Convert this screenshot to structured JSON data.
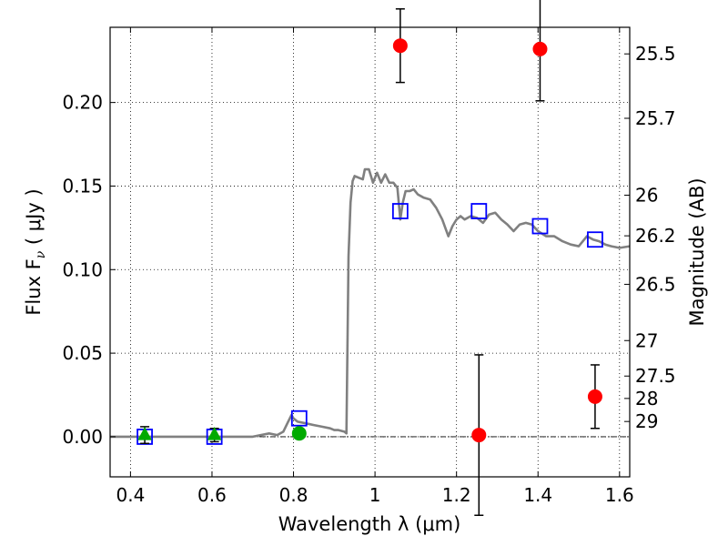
{
  "chart_data": {
    "type": "scatter",
    "xlabel": "Wavelength  λ (μm)",
    "ylabel": "Flux  F",
    "ylabel_sub": "ν",
    "ylabel_unit": " ( μJy )",
    "y2label": "Magnitude (AB)",
    "xlim": [
      0.35,
      1.625
    ],
    "ylim": [
      -0.024,
      0.245
    ],
    "grid": true,
    "xticks": [
      {
        "value": 0.4,
        "label": "0.4"
      },
      {
        "value": 0.6,
        "label": "0.6"
      },
      {
        "value": 0.8,
        "label": "0.8"
      },
      {
        "value": 1.0,
        "label": "1"
      },
      {
        "value": 1.2,
        "label": "1.2"
      },
      {
        "value": 1.4,
        "label": "1.4"
      },
      {
        "value": 1.6,
        "label": "1.6"
      }
    ],
    "yticks": [
      {
        "value": 0.0,
        "label": "0.00"
      },
      {
        "value": 0.05,
        "label": "0.05"
      },
      {
        "value": 0.1,
        "label": "0.10"
      },
      {
        "value": 0.15,
        "label": "0.15"
      },
      {
        "value": 0.2,
        "label": "0.20"
      }
    ],
    "mag_ticks": [
      {
        "mag": 25.5,
        "label": "25.5"
      },
      {
        "mag": 25.7,
        "label": "25.7"
      },
      {
        "mag": 26.0,
        "label": "26"
      },
      {
        "mag": 26.2,
        "label": "26.2"
      },
      {
        "mag": 26.5,
        "label": "26.5"
      },
      {
        "mag": 27.0,
        "label": "27"
      },
      {
        "mag": 27.5,
        "label": "27.5"
      },
      {
        "mag": 28.0,
        "label": "28"
      },
      {
        "mag": 29.0,
        "label": "29"
      }
    ],
    "series": [
      {
        "name": "model SED",
        "kind": "line",
        "color": "#808080",
        "x": [
          0.35,
          0.5,
          0.7,
          0.74,
          0.76,
          0.775,
          0.785,
          0.795,
          0.8,
          0.81,
          0.83,
          0.85,
          0.87,
          0.89,
          0.9,
          0.91,
          0.925,
          0.93,
          0.935,
          0.94,
          0.945,
          0.95,
          0.96,
          0.97,
          0.975,
          0.985,
          0.995,
          1.005,
          1.015,
          1.025,
          1.035,
          1.045,
          1.055,
          1.062,
          1.068,
          1.075,
          1.085,
          1.095,
          1.105,
          1.12,
          1.135,
          1.15,
          1.165,
          1.18,
          1.19,
          1.2,
          1.21,
          1.22,
          1.235,
          1.25,
          1.265,
          1.28,
          1.295,
          1.31,
          1.325,
          1.34,
          1.355,
          1.37,
          1.385,
          1.4,
          1.42,
          1.44,
          1.46,
          1.48,
          1.5,
          1.51,
          1.52,
          1.535,
          1.55,
          1.565,
          1.58,
          1.6,
          1.625
        ],
        "y": [
          0.0,
          0.0,
          0.0,
          0.002,
          0.001,
          0.003,
          0.008,
          0.013,
          0.011,
          0.009,
          0.008,
          0.007,
          0.006,
          0.005,
          0.004,
          0.004,
          0.003,
          0.002,
          0.108,
          0.14,
          0.153,
          0.156,
          0.155,
          0.154,
          0.16,
          0.16,
          0.152,
          0.158,
          0.152,
          0.157,
          0.152,
          0.152,
          0.149,
          0.13,
          0.14,
          0.147,
          0.147,
          0.148,
          0.145,
          0.143,
          0.142,
          0.137,
          0.13,
          0.12,
          0.126,
          0.13,
          0.132,
          0.13,
          0.132,
          0.131,
          0.128,
          0.133,
          0.134,
          0.13,
          0.127,
          0.123,
          0.127,
          0.128,
          0.127,
          0.123,
          0.12,
          0.12,
          0.117,
          0.115,
          0.114,
          0.117,
          0.12,
          0.118,
          0.117,
          0.115,
          0.114,
          0.113,
          0.114
        ]
      },
      {
        "name": "model band fluxes",
        "kind": "open-square",
        "color": "#0000ff",
        "x": [
          0.435,
          0.606,
          0.814,
          1.062,
          1.255,
          1.405,
          1.54
        ],
        "y": [
          0.0,
          0.0,
          0.011,
          0.135,
          0.135,
          0.126,
          0.118
        ]
      },
      {
        "name": "observed triangles",
        "kind": "triangle",
        "color": "#00aa00",
        "x": [
          0.435,
          0.606
        ],
        "y": [
          0.001,
          0.001
        ],
        "err": [
          0.005,
          0.004
        ]
      },
      {
        "name": "observed circle",
        "kind": "circle",
        "color": "#00aa00",
        "x": [
          0.814
        ],
        "y": [
          0.002
        ],
        "err": [
          0.0
        ]
      },
      {
        "name": "observed NIR",
        "kind": "circle",
        "color": "#ff0000",
        "x": [
          1.062,
          1.255,
          1.405,
          1.54
        ],
        "y": [
          0.234,
          0.001,
          0.232,
          0.024
        ],
        "err": [
          0.022,
          0.048,
          0.031,
          0.019
        ]
      }
    ]
  }
}
